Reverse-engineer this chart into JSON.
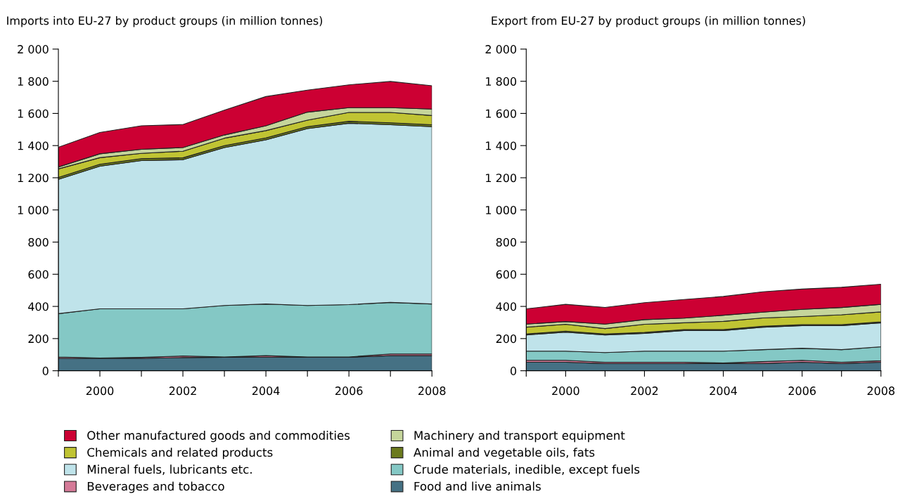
{
  "chart_data": [
    {
      "type": "area",
      "stacked": true,
      "title": "Imports into EU-27 by product groups (in million tonnes)",
      "x": [
        1999,
        2000,
        2001,
        2002,
        2003,
        2004,
        2005,
        2006,
        2007,
        2008
      ],
      "xlim": [
        1999,
        2008
      ],
      "xticks": [
        {
          "value": 1999,
          "label": null
        },
        2000,
        {
          "value": 2001,
          "label": null
        },
        2002,
        {
          "value": 2003,
          "label": null
        },
        2004,
        {
          "value": 2005,
          "label": null
        },
        2006,
        {
          "value": 2007,
          "label": null
        },
        2008
      ],
      "ylim": [
        0,
        2000
      ],
      "yticks": [
        0,
        200,
        400,
        600,
        800,
        {
          "value": 1000,
          "label": "1 000"
        },
        {
          "value": 1200,
          "label": "1 200"
        },
        {
          "value": 1400,
          "label": "1 400"
        },
        {
          "value": 1600,
          "label": "1 600"
        },
        {
          "value": 1800,
          "label": "1 800"
        },
        {
          "value": 2000,
          "label": "2 000"
        }
      ],
      "grid": false,
      "legend": "bottom",
      "series": [
        {
          "name": "Food and live animals",
          "color": "#457184",
          "values": [
            78,
            77,
            77,
            82,
            84,
            84,
            84,
            84,
            94,
            94
          ]
        },
        {
          "name": "Beverages and tobacco",
          "color": "#d57a98",
          "values": [
            8,
            2,
            6,
            10,
            2,
            10,
            2,
            2,
            10,
            10
          ]
        },
        {
          "name": "Crude materials, inedible, except fuels",
          "color": "#84c8c5",
          "values": [
            269,
            306,
            302,
            293,
            320,
            321,
            320,
            325,
            321,
            311
          ]
        },
        {
          "name": "Mineral fuels, lubricants etc.",
          "color": "#bfe3ea",
          "values": [
            835,
            887,
            922,
            927,
            982,
            1021,
            1100,
            1128,
            1105,
            1103
          ]
        },
        {
          "name": "Animal and vegetable oils, fats",
          "color": "#6b7a1e",
          "values": [
            12,
            12,
            12,
            12,
            12,
            12,
            12,
            12,
            12,
            12
          ]
        },
        {
          "name": "Chemicals and related products",
          "color": "#c0c433",
          "values": [
            53,
            41,
            33,
            41,
            46,
            45,
            40,
            55,
            64,
            57
          ]
        },
        {
          "name": "Machinery and transport equipment",
          "color": "#c5d59b",
          "values": [
            12,
            24,
            25,
            23,
            20,
            30,
            50,
            30,
            30,
            40
          ]
        },
        {
          "name": "Other manufactured goods and commodities",
          "color": "#cc0033",
          "values": [
            123,
            133,
            146,
            143,
            154,
            182,
            137,
            142,
            163,
            145
          ]
        }
      ]
    },
    {
      "type": "area",
      "stacked": true,
      "title": "Export from EU-27 by product groups (in million tonnes)",
      "x": [
        1999,
        2000,
        2001,
        2002,
        2003,
        2004,
        2005,
        2006,
        2007,
        2008
      ],
      "xlim": [
        1999,
        2008
      ],
      "xticks": [
        {
          "value": 1999,
          "label": null
        },
        2000,
        {
          "value": 2001,
          "label": null
        },
        2002,
        {
          "value": 2003,
          "label": null
        },
        2004,
        {
          "value": 2005,
          "label": null
        },
        2006,
        {
          "value": 2007,
          "label": null
        },
        2008
      ],
      "ylim": [
        0,
        2000
      ],
      "yticks": [
        0,
        200,
        400,
        600,
        800,
        {
          "value": 1000,
          "label": "1 000"
        },
        {
          "value": 1200,
          "label": "1 200"
        },
        {
          "value": 1400,
          "label": "1 400"
        },
        {
          "value": 1600,
          "label": "1 600"
        },
        {
          "value": 1800,
          "label": "1 800"
        },
        {
          "value": 2000,
          "label": "2 000"
        }
      ],
      "grid": false,
      "series": [
        {
          "color": "#457184",
          "values": [
            53,
            53,
            45,
            45,
            45,
            45,
            45,
            53,
            45,
            53
          ]
        },
        {
          "color": "#d57a98",
          "values": [
            12,
            12,
            8,
            8,
            8,
            3,
            12,
            12,
            8,
            9
          ]
        },
        {
          "color": "#84c8c5",
          "values": [
            57,
            57,
            60,
            69,
            69,
            74,
            74,
            75,
            78,
            87
          ]
        },
        {
          "color": "#bfe3ea",
          "values": [
            101,
            118,
            110,
            110,
            128,
            128,
            140,
            140,
            149,
            149
          ]
        },
        {
          "color": "#6b7a1e",
          "values": [
            6,
            6,
            6,
            6,
            6,
            6,
            6,
            6,
            6,
            6
          ]
        },
        {
          "color": "#c0c433",
          "values": [
            42,
            43,
            33,
            51,
            42,
            51,
            51,
            51,
            62,
            62
          ]
        },
        {
          "color": "#c5d59b",
          "values": [
            19,
            17,
            28,
            29,
            29,
            38,
            36,
            45,
            45,
            47
          ]
        },
        {
          "color": "#cc0033",
          "values": [
            95,
            107,
            104,
            105,
            116,
            117,
            127,
            126,
            126,
            125
          ]
        }
      ]
    }
  ]
}
